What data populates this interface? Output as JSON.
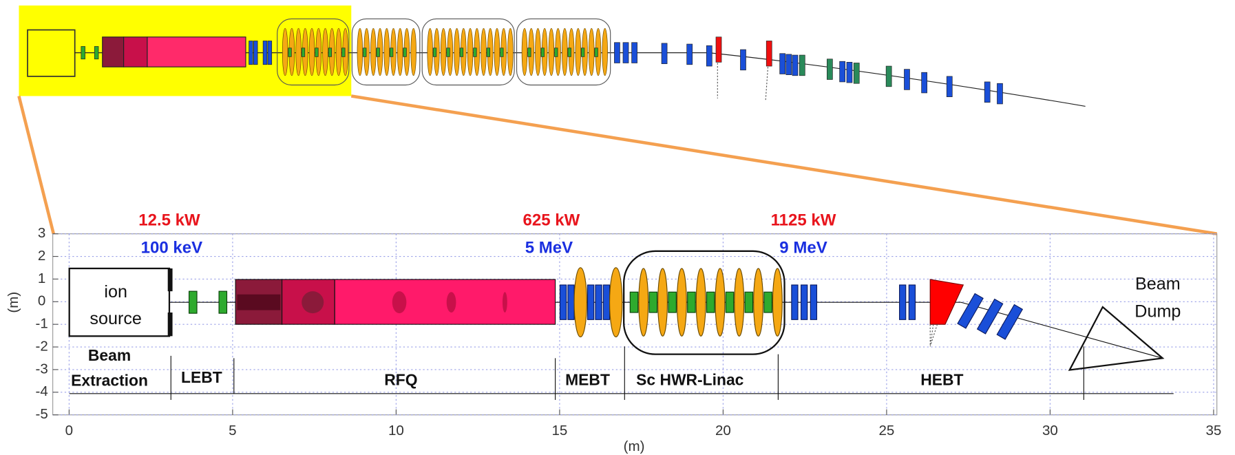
{
  "plot": {
    "xlabel": "(m)",
    "ylabel": "(m)",
    "xlim": [
      -0.5,
      35.1
    ],
    "ylim": [
      -5,
      3
    ],
    "xticks": [
      0,
      5,
      10,
      15,
      20,
      25,
      30,
      35
    ],
    "yticks": [
      -5,
      -4,
      -3,
      -2,
      -1,
      0,
      1,
      2,
      3
    ],
    "grid": true
  },
  "components": {
    "ion_source": [
      "ion",
      "source"
    ],
    "beam_dump": [
      "Beam",
      "Dump"
    ]
  },
  "sections": [
    [
      "Beam",
      "Extraction"
    ],
    [
      "LEBT"
    ],
    [
      "RFQ"
    ],
    [
      "MEBT"
    ],
    [
      "Sc HWR-Linac"
    ],
    [
      "HEBT"
    ]
  ],
  "annotations": [
    {
      "power": "12.5 kW",
      "energy": "100 keV"
    },
    {
      "power": "625 kW",
      "energy": "5 MeV"
    },
    {
      "power": "1125 kW",
      "energy": "9 MeV"
    }
  ]
}
